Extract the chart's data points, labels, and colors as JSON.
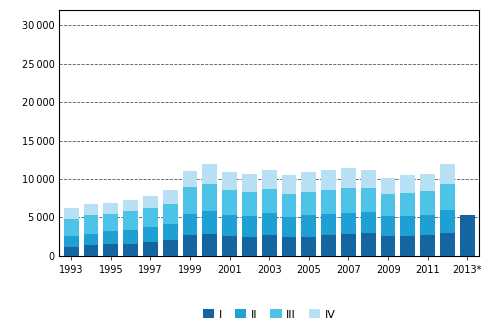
{
  "years": [
    1993,
    1994,
    1995,
    1996,
    1997,
    1998,
    1999,
    2000,
    2001,
    2002,
    2003,
    2004,
    2005,
    2006,
    2007,
    2008,
    2009,
    2010,
    2011,
    2012,
    2013
  ],
  "Q1": [
    1200,
    1350,
    1500,
    1600,
    1800,
    2000,
    2700,
    2800,
    2600,
    2500,
    2700,
    2400,
    2500,
    2700,
    2900,
    3000,
    2600,
    2600,
    2700,
    3000,
    5300
  ],
  "Q2": [
    1400,
    1500,
    1700,
    1800,
    1900,
    2100,
    2800,
    3000,
    2700,
    2700,
    2900,
    2600,
    2800,
    2800,
    2700,
    2700,
    2600,
    2600,
    2600,
    2900,
    0
  ],
  "Q3": [
    2200,
    2400,
    2300,
    2400,
    2500,
    2700,
    3400,
    3500,
    3200,
    3100,
    3100,
    3100,
    3000,
    3000,
    3200,
    3100,
    2800,
    3000,
    3100,
    3400,
    0
  ],
  "Q4": [
    1400,
    1550,
    1400,
    1500,
    1600,
    1800,
    2100,
    2600,
    2400,
    2300,
    2500,
    2400,
    2600,
    2700,
    2600,
    2400,
    2100,
    2300,
    2300,
    2600,
    0
  ],
  "colors_Q1": "#1565a0",
  "colors_Q2": "#1ea0d5",
  "colors_Q3": "#4dc3e8",
  "colors_Q4": "#b8e0f5",
  "bar_width": 0.75,
  "ylim": [
    0,
    32000
  ],
  "yticks": [
    0,
    5000,
    10000,
    15000,
    20000,
    25000,
    30000
  ],
  "legend_labels": [
    "I",
    "II",
    "III",
    "IV"
  ],
  "background_color": "#ffffff",
  "grid_color": "#555555",
  "xtick_years": [
    1993,
    1995,
    1997,
    1999,
    2001,
    2003,
    2005,
    2007,
    2009,
    2011,
    2013
  ]
}
